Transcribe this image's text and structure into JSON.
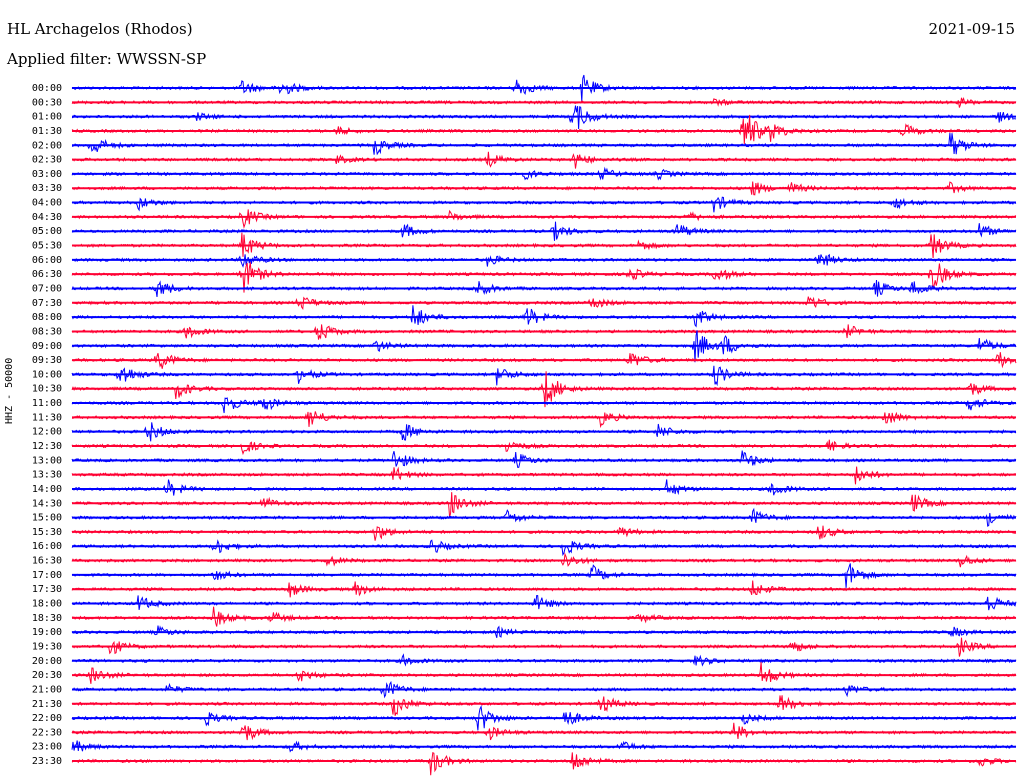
{
  "header": {
    "station": "HL Archagelos (Rhodos)",
    "date": "2021-09-15",
    "filter": "Applied filter: WWSSN-SP"
  },
  "chart_data": {
    "type": "line",
    "title": "HL Archagelos (Rhodos)",
    "subtitle": "Applied filter: WWSSN-SP",
    "date": "2021-09-15",
    "ylabel": "HHZ - 50000",
    "trace_colors": [
      "#0000ff",
      "#ff0033"
    ],
    "grid": false,
    "rows": [
      "00:00",
      "00:30",
      "01:00",
      "01:30",
      "02:00",
      "02:30",
      "03:00",
      "03:30",
      "04:00",
      "04:30",
      "05:00",
      "05:30",
      "06:00",
      "06:30",
      "07:00",
      "07:30",
      "08:00",
      "08:30",
      "09:00",
      "09:30",
      "10:00",
      "10:30",
      "11:00",
      "11:30",
      "12:00",
      "12:30",
      "13:00",
      "13:30",
      "14:00",
      "14:30",
      "15:00",
      "15:30",
      "16:00",
      "16:30",
      "17:00",
      "17:30",
      "18:00",
      "18:30",
      "19:00",
      "19:30",
      "20:00",
      "20:30",
      "21:00",
      "21:30",
      "22:00",
      "22:30",
      "23:00",
      "23:30"
    ],
    "x_unit": "fraction of 30-minute window",
    "events": [
      {
        "row": "00:00",
        "x": 0.18,
        "amp": 8
      },
      {
        "row": "00:00",
        "x": 0.22,
        "amp": 10
      },
      {
        "row": "00:00",
        "x": 0.47,
        "amp": 11
      },
      {
        "row": "00:00",
        "x": 0.54,
        "amp": 14
      },
      {
        "row": "00:30",
        "x": 0.68,
        "amp": 3
      },
      {
        "row": "00:30",
        "x": 0.94,
        "amp": 4
      },
      {
        "row": "01:00",
        "x": 0.53,
        "amp": 20
      },
      {
        "row": "01:00",
        "x": 0.13,
        "amp": 4
      },
      {
        "row": "01:00",
        "x": 0.98,
        "amp": 6
      },
      {
        "row": "01:30",
        "x": 0.71,
        "amp": 30
      },
      {
        "row": "01:30",
        "x": 0.88,
        "amp": 8
      },
      {
        "row": "01:30",
        "x": 0.74,
        "amp": 8
      },
      {
        "row": "01:30",
        "x": 0.28,
        "amp": 4
      },
      {
        "row": "02:00",
        "x": 0.02,
        "amp": 12
      },
      {
        "row": "02:00",
        "x": 0.32,
        "amp": 10
      },
      {
        "row": "02:00",
        "x": 0.93,
        "amp": 14
      },
      {
        "row": "02:30",
        "x": 0.44,
        "amp": 8
      },
      {
        "row": "02:30",
        "x": 0.53,
        "amp": 10
      },
      {
        "row": "02:30",
        "x": 0.28,
        "amp": 4
      },
      {
        "row": "03:00",
        "x": 0.48,
        "amp": 5
      },
      {
        "row": "03:00",
        "x": 0.56,
        "amp": 6
      },
      {
        "row": "03:00",
        "x": 0.62,
        "amp": 5
      },
      {
        "row": "03:30",
        "x": 0.72,
        "amp": 8
      },
      {
        "row": "03:30",
        "x": 0.76,
        "amp": 6
      },
      {
        "row": "03:30",
        "x": 0.93,
        "amp": 5
      },
      {
        "row": "04:00",
        "x": 0.07,
        "amp": 7
      },
      {
        "row": "04:00",
        "x": 0.68,
        "amp": 9
      },
      {
        "row": "04:00",
        "x": 0.87,
        "amp": 7
      },
      {
        "row": "04:30",
        "x": 0.18,
        "amp": 12
      },
      {
        "row": "04:30",
        "x": 0.4,
        "amp": 5
      },
      {
        "row": "04:30",
        "x": 0.65,
        "amp": 5
      },
      {
        "row": "05:00",
        "x": 0.35,
        "amp": 8
      },
      {
        "row": "05:00",
        "x": 0.51,
        "amp": 10
      },
      {
        "row": "05:00",
        "x": 0.64,
        "amp": 9
      },
      {
        "row": "05:00",
        "x": 0.96,
        "amp": 8
      },
      {
        "row": "05:30",
        "x": 0.18,
        "amp": 14
      },
      {
        "row": "05:30",
        "x": 0.91,
        "amp": 14
      },
      {
        "row": "05:30",
        "x": 0.6,
        "amp": 5
      },
      {
        "row": "06:00",
        "x": 0.18,
        "amp": 10
      },
      {
        "row": "06:00",
        "x": 0.79,
        "amp": 10
      },
      {
        "row": "06:00",
        "x": 0.44,
        "amp": 6
      },
      {
        "row": "06:30",
        "x": 0.18,
        "amp": 22
      },
      {
        "row": "06:30",
        "x": 0.91,
        "amp": 20
      },
      {
        "row": "06:30",
        "x": 0.68,
        "amp": 9
      },
      {
        "row": "06:30",
        "x": 0.59,
        "amp": 7
      },
      {
        "row": "07:00",
        "x": 0.09,
        "amp": 10
      },
      {
        "row": "07:00",
        "x": 0.43,
        "amp": 8
      },
      {
        "row": "07:00",
        "x": 0.85,
        "amp": 9
      },
      {
        "row": "07:00",
        "x": 0.89,
        "amp": 9
      },
      {
        "row": "07:30",
        "x": 0.24,
        "amp": 9
      },
      {
        "row": "07:30",
        "x": 0.55,
        "amp": 7
      },
      {
        "row": "07:30",
        "x": 0.78,
        "amp": 8
      },
      {
        "row": "08:00",
        "x": 0.36,
        "amp": 14
      },
      {
        "row": "08:00",
        "x": 0.48,
        "amp": 12
      },
      {
        "row": "08:00",
        "x": 0.66,
        "amp": 10
      },
      {
        "row": "08:30",
        "x": 0.26,
        "amp": 12
      },
      {
        "row": "08:30",
        "x": 0.12,
        "amp": 8
      },
      {
        "row": "08:30",
        "x": 0.82,
        "amp": 7
      },
      {
        "row": "09:00",
        "x": 0.66,
        "amp": 18
      },
      {
        "row": "09:00",
        "x": 0.69,
        "amp": 10
      },
      {
        "row": "09:00",
        "x": 0.32,
        "amp": 7
      },
      {
        "row": "09:00",
        "x": 0.96,
        "amp": 9
      },
      {
        "row": "09:30",
        "x": 0.09,
        "amp": 12
      },
      {
        "row": "09:30",
        "x": 0.59,
        "amp": 10
      },
      {
        "row": "09:30",
        "x": 0.98,
        "amp": 9
      },
      {
        "row": "10:00",
        "x": 0.05,
        "amp": 14
      },
      {
        "row": "10:00",
        "x": 0.24,
        "amp": 8
      },
      {
        "row": "10:00",
        "x": 0.45,
        "amp": 10
      },
      {
        "row": "10:00",
        "x": 0.68,
        "amp": 12
      },
      {
        "row": "10:30",
        "x": 0.5,
        "amp": 22
      },
      {
        "row": "10:30",
        "x": 0.11,
        "amp": 10
      },
      {
        "row": "10:30",
        "x": 0.95,
        "amp": 8
      },
      {
        "row": "11:00",
        "x": 0.16,
        "amp": 12
      },
      {
        "row": "11:00",
        "x": 0.2,
        "amp": 10
      },
      {
        "row": "11:00",
        "x": 0.95,
        "amp": 9
      },
      {
        "row": "11:30",
        "x": 0.25,
        "amp": 12
      },
      {
        "row": "11:30",
        "x": 0.56,
        "amp": 8
      },
      {
        "row": "11:30",
        "x": 0.86,
        "amp": 10
      },
      {
        "row": "12:00",
        "x": 0.08,
        "amp": 12
      },
      {
        "row": "12:00",
        "x": 0.35,
        "amp": 10
      },
      {
        "row": "12:00",
        "x": 0.62,
        "amp": 8
      },
      {
        "row": "12:30",
        "x": 0.18,
        "amp": 8
      },
      {
        "row": "12:30",
        "x": 0.46,
        "amp": 7
      },
      {
        "row": "12:30",
        "x": 0.8,
        "amp": 6
      },
      {
        "row": "13:00",
        "x": 0.34,
        "amp": 12
      },
      {
        "row": "13:00",
        "x": 0.71,
        "amp": 10
      },
      {
        "row": "13:00",
        "x": 0.47,
        "amp": 8
      },
      {
        "row": "13:30",
        "x": 0.34,
        "amp": 8
      },
      {
        "row": "13:30",
        "x": 0.83,
        "amp": 10
      },
      {
        "row": "14:00",
        "x": 0.1,
        "amp": 10
      },
      {
        "row": "14:00",
        "x": 0.63,
        "amp": 9
      },
      {
        "row": "14:00",
        "x": 0.74,
        "amp": 8
      },
      {
        "row": "14:30",
        "x": 0.4,
        "amp": 14
      },
      {
        "row": "14:30",
        "x": 0.89,
        "amp": 10
      },
      {
        "row": "14:30",
        "x": 0.2,
        "amp": 7
      },
      {
        "row": "15:00",
        "x": 0.46,
        "amp": 8
      },
      {
        "row": "15:00",
        "x": 0.72,
        "amp": 9
      },
      {
        "row": "15:00",
        "x": 0.97,
        "amp": 8
      },
      {
        "row": "15:30",
        "x": 0.32,
        "amp": 10
      },
      {
        "row": "15:30",
        "x": 0.79,
        "amp": 9
      },
      {
        "row": "15:30",
        "x": 0.58,
        "amp": 6
      },
      {
        "row": "16:00",
        "x": 0.15,
        "amp": 10
      },
      {
        "row": "16:00",
        "x": 0.38,
        "amp": 8
      },
      {
        "row": "16:00",
        "x": 0.52,
        "amp": 10
      },
      {
        "row": "16:30",
        "x": 0.52,
        "amp": 9
      },
      {
        "row": "16:30",
        "x": 0.27,
        "amp": 6
      },
      {
        "row": "16:30",
        "x": 0.94,
        "amp": 7
      },
      {
        "row": "17:00",
        "x": 0.82,
        "amp": 16
      },
      {
        "row": "17:00",
        "x": 0.55,
        "amp": 10
      },
      {
        "row": "17:00",
        "x": 0.15,
        "amp": 6
      },
      {
        "row": "17:30",
        "x": 0.23,
        "amp": 8
      },
      {
        "row": "17:30",
        "x": 0.72,
        "amp": 9
      },
      {
        "row": "17:30",
        "x": 0.3,
        "amp": 7
      },
      {
        "row": "18:00",
        "x": 0.07,
        "amp": 8
      },
      {
        "row": "18:00",
        "x": 0.49,
        "amp": 9
      },
      {
        "row": "18:00",
        "x": 0.97,
        "amp": 10
      },
      {
        "row": "18:30",
        "x": 0.15,
        "amp": 10
      },
      {
        "row": "18:30",
        "x": 0.21,
        "amp": 6
      },
      {
        "row": "18:30",
        "x": 0.6,
        "amp": 5
      },
      {
        "row": "19:00",
        "x": 0.09,
        "amp": 6
      },
      {
        "row": "19:00",
        "x": 0.45,
        "amp": 5
      },
      {
        "row": "19:00",
        "x": 0.93,
        "amp": 6
      },
      {
        "row": "19:30",
        "x": 0.04,
        "amp": 9
      },
      {
        "row": "19:30",
        "x": 0.76,
        "amp": 8
      },
      {
        "row": "19:30",
        "x": 0.94,
        "amp": 9
      },
      {
        "row": "20:00",
        "x": 0.35,
        "amp": 5
      },
      {
        "row": "20:00",
        "x": 0.66,
        "amp": 6
      },
      {
        "row": "20:30",
        "x": 0.02,
        "amp": 9
      },
      {
        "row": "20:30",
        "x": 0.73,
        "amp": 14
      },
      {
        "row": "20:30",
        "x": 0.24,
        "amp": 7
      },
      {
        "row": "21:00",
        "x": 0.33,
        "amp": 12
      },
      {
        "row": "21:00",
        "x": 0.1,
        "amp": 5
      },
      {
        "row": "21:00",
        "x": 0.82,
        "amp": 6
      },
      {
        "row": "21:30",
        "x": 0.34,
        "amp": 14
      },
      {
        "row": "21:30",
        "x": 0.56,
        "amp": 10
      },
      {
        "row": "21:30",
        "x": 0.75,
        "amp": 10
      },
      {
        "row": "22:00",
        "x": 0.43,
        "amp": 16
      },
      {
        "row": "22:00",
        "x": 0.14,
        "amp": 8
      },
      {
        "row": "22:00",
        "x": 0.52,
        "amp": 12
      },
      {
        "row": "22:00",
        "x": 0.71,
        "amp": 6
      },
      {
        "row": "22:30",
        "x": 0.18,
        "amp": 12
      },
      {
        "row": "22:30",
        "x": 0.7,
        "amp": 10
      },
      {
        "row": "22:30",
        "x": 0.44,
        "amp": 8
      },
      {
        "row": "23:00",
        "x": 0.0,
        "amp": 8
      },
      {
        "row": "23:00",
        "x": 0.23,
        "amp": 6
      },
      {
        "row": "23:00",
        "x": 0.58,
        "amp": 6
      },
      {
        "row": "23:30",
        "x": 0.38,
        "amp": 14
      },
      {
        "row": "23:30",
        "x": 0.53,
        "amp": 12
      },
      {
        "row": "23:30",
        "x": 0.96,
        "amp": 6
      }
    ]
  }
}
